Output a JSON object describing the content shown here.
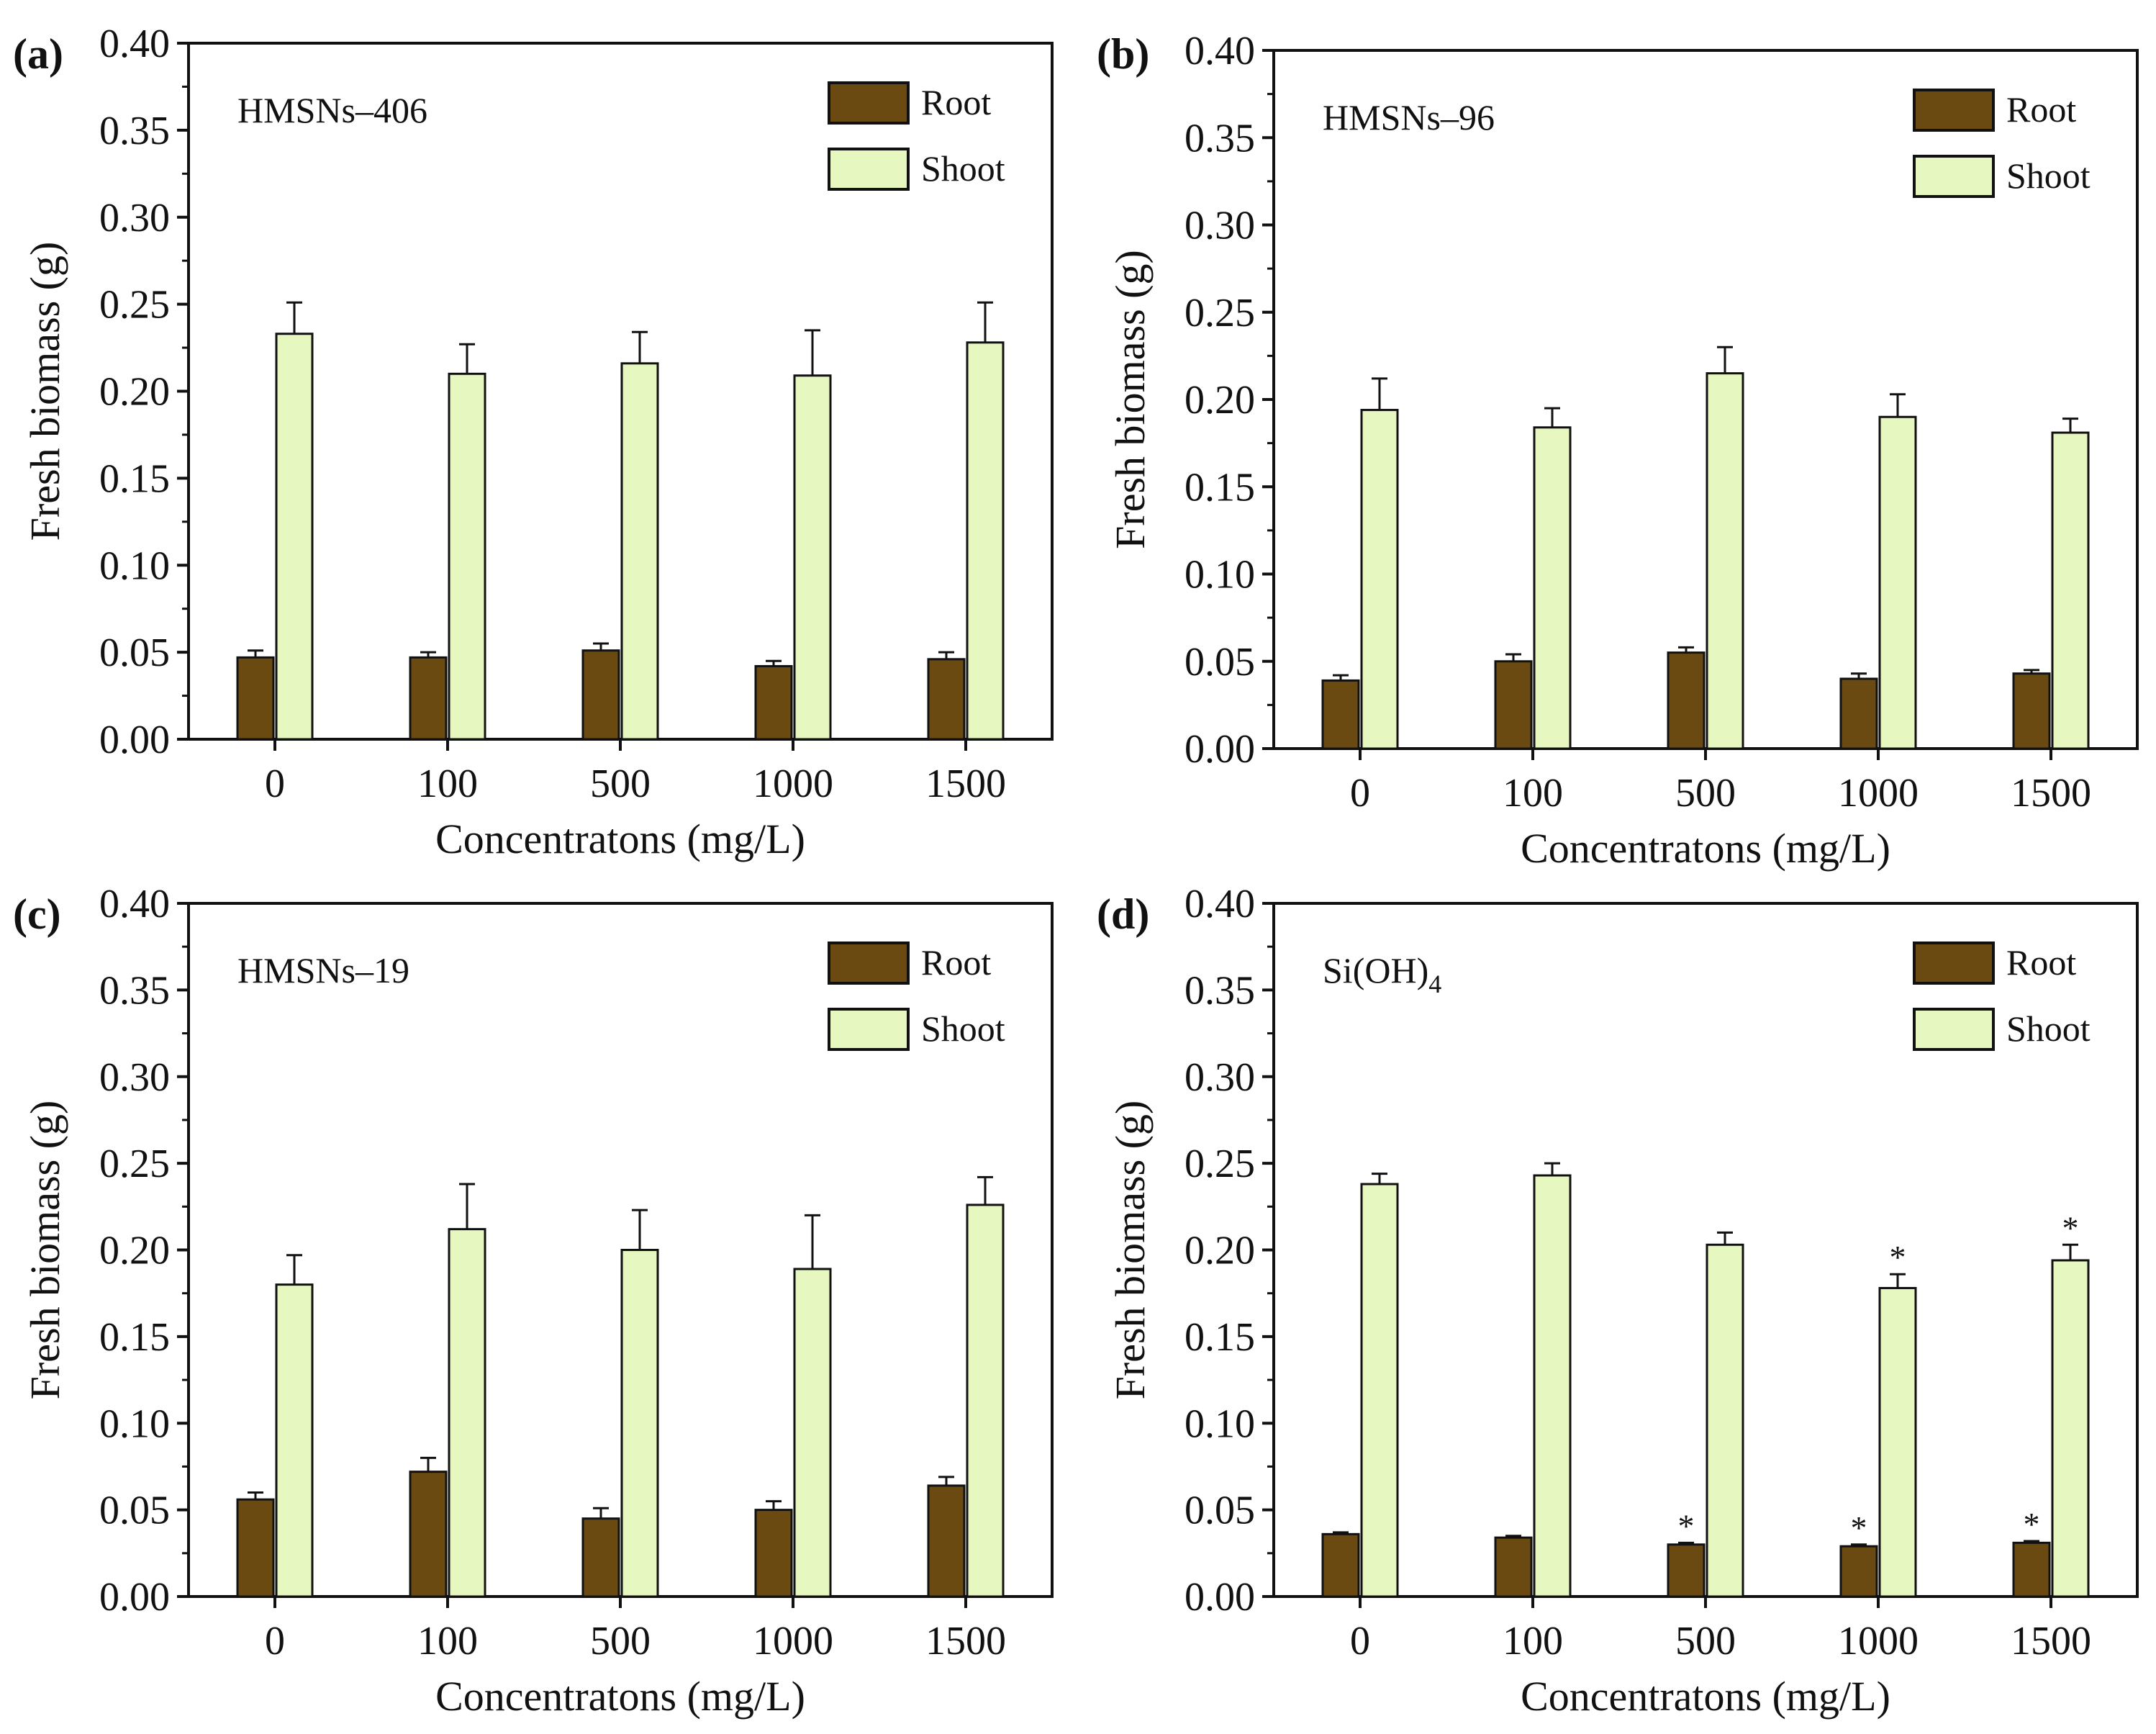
{
  "figure": {
    "colors": {
      "root": "#6b4a12",
      "shoot": "#e6f8c0",
      "stroke": "#111111"
    }
  },
  "chart_data": [
    {
      "type": "bar",
      "panel": "(a)",
      "annotation": "HMSNs–406",
      "xlabel": "Concentratons (mg/L)",
      "ylabel": "Fresh biomass (g)",
      "ylim": [
        0,
        0.4
      ],
      "yticks": [
        "0.00",
        "0.05",
        "0.10",
        "0.15",
        "0.20",
        "0.25",
        "0.30",
        "0.35",
        "0.40"
      ],
      "categories": [
        "0",
        "100",
        "500",
        "1000",
        "1500"
      ],
      "legend": {
        "position": "top-right"
      },
      "series": [
        {
          "name": "Root",
          "values": [
            0.047,
            0.047,
            0.051,
            0.042,
            0.046
          ],
          "errors": [
            0.004,
            0.003,
            0.004,
            0.003,
            0.004
          ],
          "marks": [
            "",
            "",
            "",
            "",
            ""
          ]
        },
        {
          "name": "Shoot",
          "values": [
            0.233,
            0.21,
            0.216,
            0.209,
            0.228
          ],
          "errors": [
            0.018,
            0.017,
            0.018,
            0.026,
            0.023
          ],
          "marks": [
            "",
            "",
            "",
            "",
            ""
          ]
        }
      ]
    },
    {
      "type": "bar",
      "panel": "(b)",
      "annotation": "HMSNs–96",
      "xlabel": "Concentratons (mg/L)",
      "ylabel": "Fresh biomass (g)",
      "ylim": [
        0,
        0.4
      ],
      "yticks": [
        "0.00",
        "0.05",
        "0.10",
        "0.15",
        "0.20",
        "0.25",
        "0.30",
        "0.35",
        "0.40"
      ],
      "categories": [
        "0",
        "100",
        "500",
        "1000",
        "1500"
      ],
      "legend": {
        "position": "top-right"
      },
      "series": [
        {
          "name": "Root",
          "values": [
            0.039,
            0.05,
            0.055,
            0.04,
            0.043
          ],
          "errors": [
            0.003,
            0.004,
            0.003,
            0.003,
            0.002
          ],
          "marks": [
            "",
            "",
            "",
            "",
            ""
          ]
        },
        {
          "name": "Shoot",
          "values": [
            0.194,
            0.184,
            0.215,
            0.19,
            0.181
          ],
          "errors": [
            0.018,
            0.011,
            0.015,
            0.013,
            0.008
          ],
          "marks": [
            "",
            "",
            "",
            "",
            ""
          ]
        }
      ]
    },
    {
      "type": "bar",
      "panel": "(c)",
      "annotation": "HMSNs–19",
      "xlabel": "Concentratons (mg/L)",
      "ylabel": "Fresh biomass (g)",
      "ylim": [
        0,
        0.4
      ],
      "yticks": [
        "0.00",
        "0.05",
        "0.10",
        "0.15",
        "0.20",
        "0.25",
        "0.30",
        "0.35",
        "0.40"
      ],
      "categories": [
        "0",
        "100",
        "500",
        "1000",
        "1500"
      ],
      "legend": {
        "position": "top-right"
      },
      "series": [
        {
          "name": "Root",
          "values": [
            0.056,
            0.072,
            0.045,
            0.05,
            0.064
          ],
          "errors": [
            0.004,
            0.008,
            0.006,
            0.005,
            0.005
          ],
          "marks": [
            "",
            "",
            "",
            "",
            ""
          ]
        },
        {
          "name": "Shoot",
          "values": [
            0.18,
            0.212,
            0.2,
            0.189,
            0.226
          ],
          "errors": [
            0.017,
            0.026,
            0.023,
            0.031,
            0.016
          ],
          "marks": [
            "",
            "",
            "",
            "",
            ""
          ]
        }
      ]
    },
    {
      "type": "bar",
      "panel": "(d)",
      "annotation_main": "Si(OH)",
      "annotation_sub": "4",
      "xlabel": "Concentratons (mg/L)",
      "ylabel": "Fresh biomass (g)",
      "ylim": [
        0,
        0.4
      ],
      "yticks": [
        "0.00",
        "0.05",
        "0.10",
        "0.15",
        "0.20",
        "0.25",
        "0.30",
        "0.35",
        "0.40"
      ],
      "categories": [
        "0",
        "100",
        "500",
        "1000",
        "1500"
      ],
      "legend": {
        "position": "top-right"
      },
      "series": [
        {
          "name": "Root",
          "values": [
            0.036,
            0.034,
            0.03,
            0.029,
            0.031
          ],
          "errors": [
            0.001,
            0.001,
            0.001,
            0.001,
            0.001
          ],
          "marks": [
            "",
            "",
            "*",
            "*",
            "*"
          ]
        },
        {
          "name": "Shoot",
          "values": [
            0.238,
            0.243,
            0.203,
            0.178,
            0.194
          ],
          "errors": [
            0.006,
            0.007,
            0.007,
            0.008,
            0.009
          ],
          "marks": [
            "",
            "",
            "",
            "*",
            "*"
          ]
        }
      ]
    }
  ]
}
